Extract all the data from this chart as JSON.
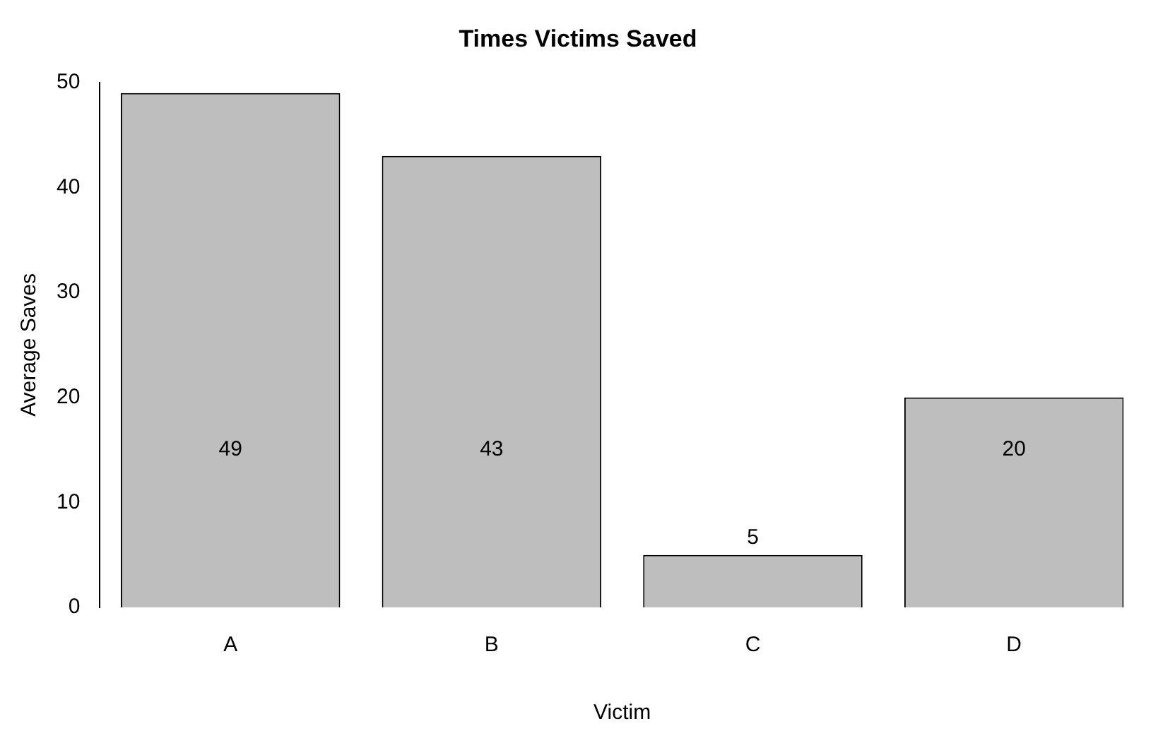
{
  "chart_data": {
    "type": "bar",
    "title": "Times Victims Saved",
    "xlabel": "Victim",
    "ylabel": "Average Saves",
    "categories": [
      "A",
      "B",
      "C",
      "D"
    ],
    "values": [
      49,
      43,
      5,
      20
    ],
    "color": "#bebebe",
    "ylim": [
      0,
      50
    ],
    "yticks": [
      0,
      10,
      20,
      30,
      40,
      50
    ],
    "grid": false,
    "legend": false,
    "data_labels": true
  }
}
